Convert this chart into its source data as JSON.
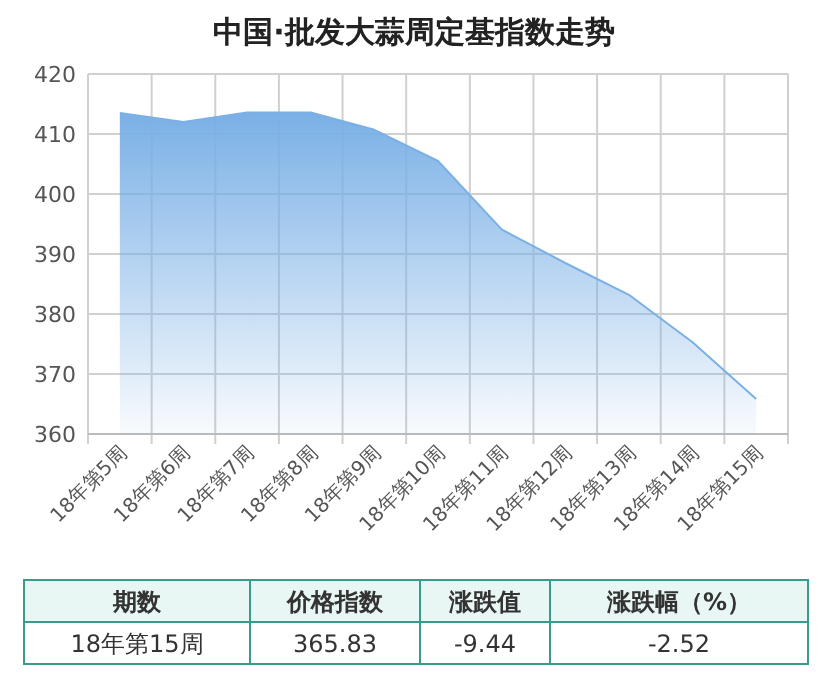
{
  "chart_data": {
    "type": "area",
    "title": "中国·批发大蒜周定基指数走势",
    "categories": [
      "18年第5周",
      "18年第6周",
      "18年第7周",
      "18年第8周",
      "18年第9周",
      "18年第10周",
      "18年第11周",
      "18年第12周",
      "18年第13周",
      "18年第14周",
      "18年第15周"
    ],
    "values": [
      413.5,
      412.0,
      413.6,
      413.6,
      410.7,
      405.5,
      394.1,
      388.5,
      383.2,
      375.3,
      365.83
    ],
    "color": "#7ab0e6",
    "ylim": [
      360,
      420
    ],
    "yticks": [
      360,
      370,
      380,
      390,
      400,
      410,
      420
    ],
    "grid": true,
    "annotations": [
      "期数",
      "价格指数",
      "涨跌值",
      "涨跌幅（%）",
      "18年第15周",
      "365.83",
      "-9.44",
      "-2.52"
    ]
  }
}
